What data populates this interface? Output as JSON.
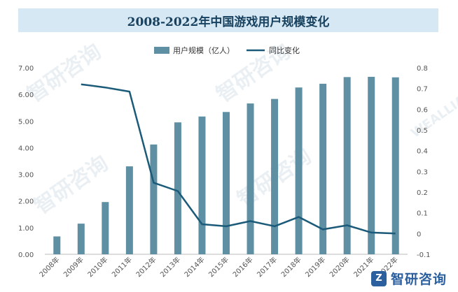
{
  "watermark": {
    "text": "智研咨询",
    "sub": "WEALLIANCE RESEARCH GROUP",
    "brand_logo": "zhiyan-logo-icon"
  },
  "colors": {
    "bar": "#5e8fa3",
    "line": "#1b5a78",
    "axis_text": "#555555",
    "title_bg": "#d6e8f3",
    "title_text": "#17415f"
  },
  "chart_data": {
    "type": "bar",
    "title": "2008-2022年中国游戏用户规模变化",
    "categories": [
      "2008年",
      "2009年",
      "2010年",
      "2011年",
      "2012年",
      "2013年",
      "2014年",
      "2015年",
      "2016年",
      "2017年",
      "2018年",
      "2019年",
      "2020年",
      "2021年",
      "2022年"
    ],
    "series": [
      {
        "name": "用户规模（亿人）",
        "type": "bar",
        "axis": "left",
        "values": [
          0.67,
          1.15,
          1.96,
          3.3,
          4.12,
          4.95,
          5.17,
          5.34,
          5.66,
          5.83,
          6.26,
          6.4,
          6.65,
          6.66,
          6.64
        ]
      },
      {
        "name": "同比变化",
        "type": "line",
        "axis": "right",
        "values": [
          null,
          0.72,
          0.705,
          0.685,
          0.245,
          0.205,
          0.045,
          0.035,
          0.06,
          0.035,
          0.08,
          0.02,
          0.04,
          0.005,
          0.0
        ]
      }
    ],
    "y_left": {
      "min": 0,
      "max": 7,
      "ticks": [
        "0.00",
        "1.00",
        "2.00",
        "3.00",
        "4.00",
        "5.00",
        "6.00",
        "7.00"
      ]
    },
    "y_right": {
      "min": -0.1,
      "max": 0.8,
      "ticks": [
        "-0.1",
        "0",
        "0.1",
        "0.2",
        "0.3",
        "0.4",
        "0.5",
        "0.6",
        "0.7",
        "0.8"
      ]
    },
    "legend_position": "top-center"
  }
}
